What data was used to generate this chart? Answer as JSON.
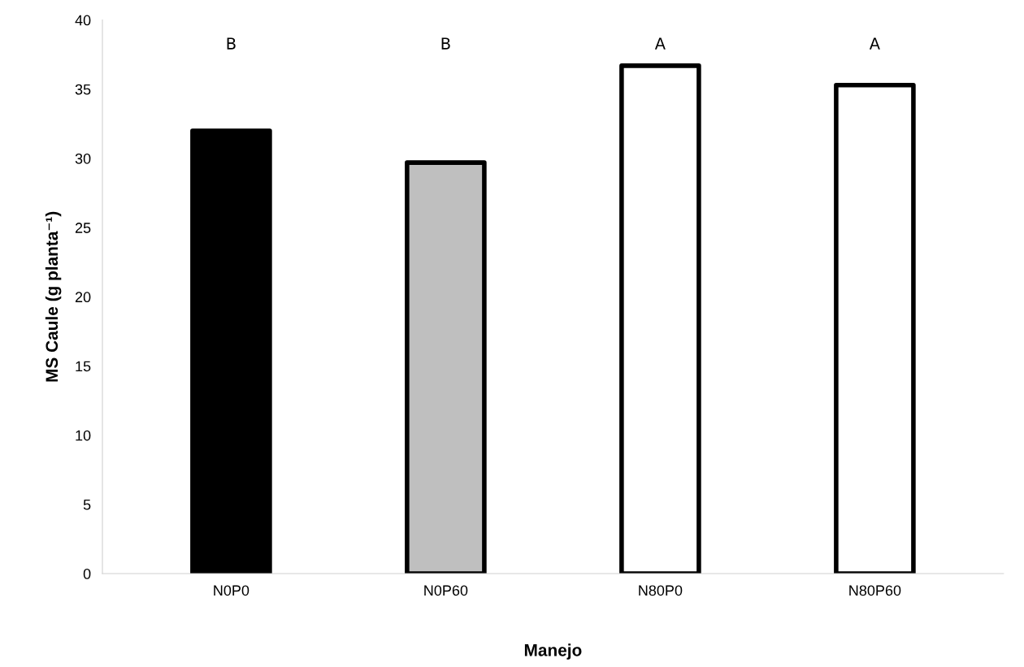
{
  "chart_data": {
    "type": "bar",
    "xlabel": "Manejo",
    "ylabel": "MS Caule (g planta⁻¹)",
    "categories": [
      "N0P0",
      "N0P60",
      "N80P0",
      "N80P60"
    ],
    "values": [
      32.0,
      29.7,
      36.7,
      35.3
    ],
    "colors": [
      "#000000",
      "#bfbfbf",
      "#ffffff",
      "#ffffff"
    ],
    "ylim": [
      0,
      40
    ],
    "yticks": [
      0,
      5,
      10,
      15,
      20,
      25,
      30,
      35,
      40
    ],
    "grid": false,
    "annotations": [
      "B",
      "B",
      "A",
      "A"
    ]
  }
}
